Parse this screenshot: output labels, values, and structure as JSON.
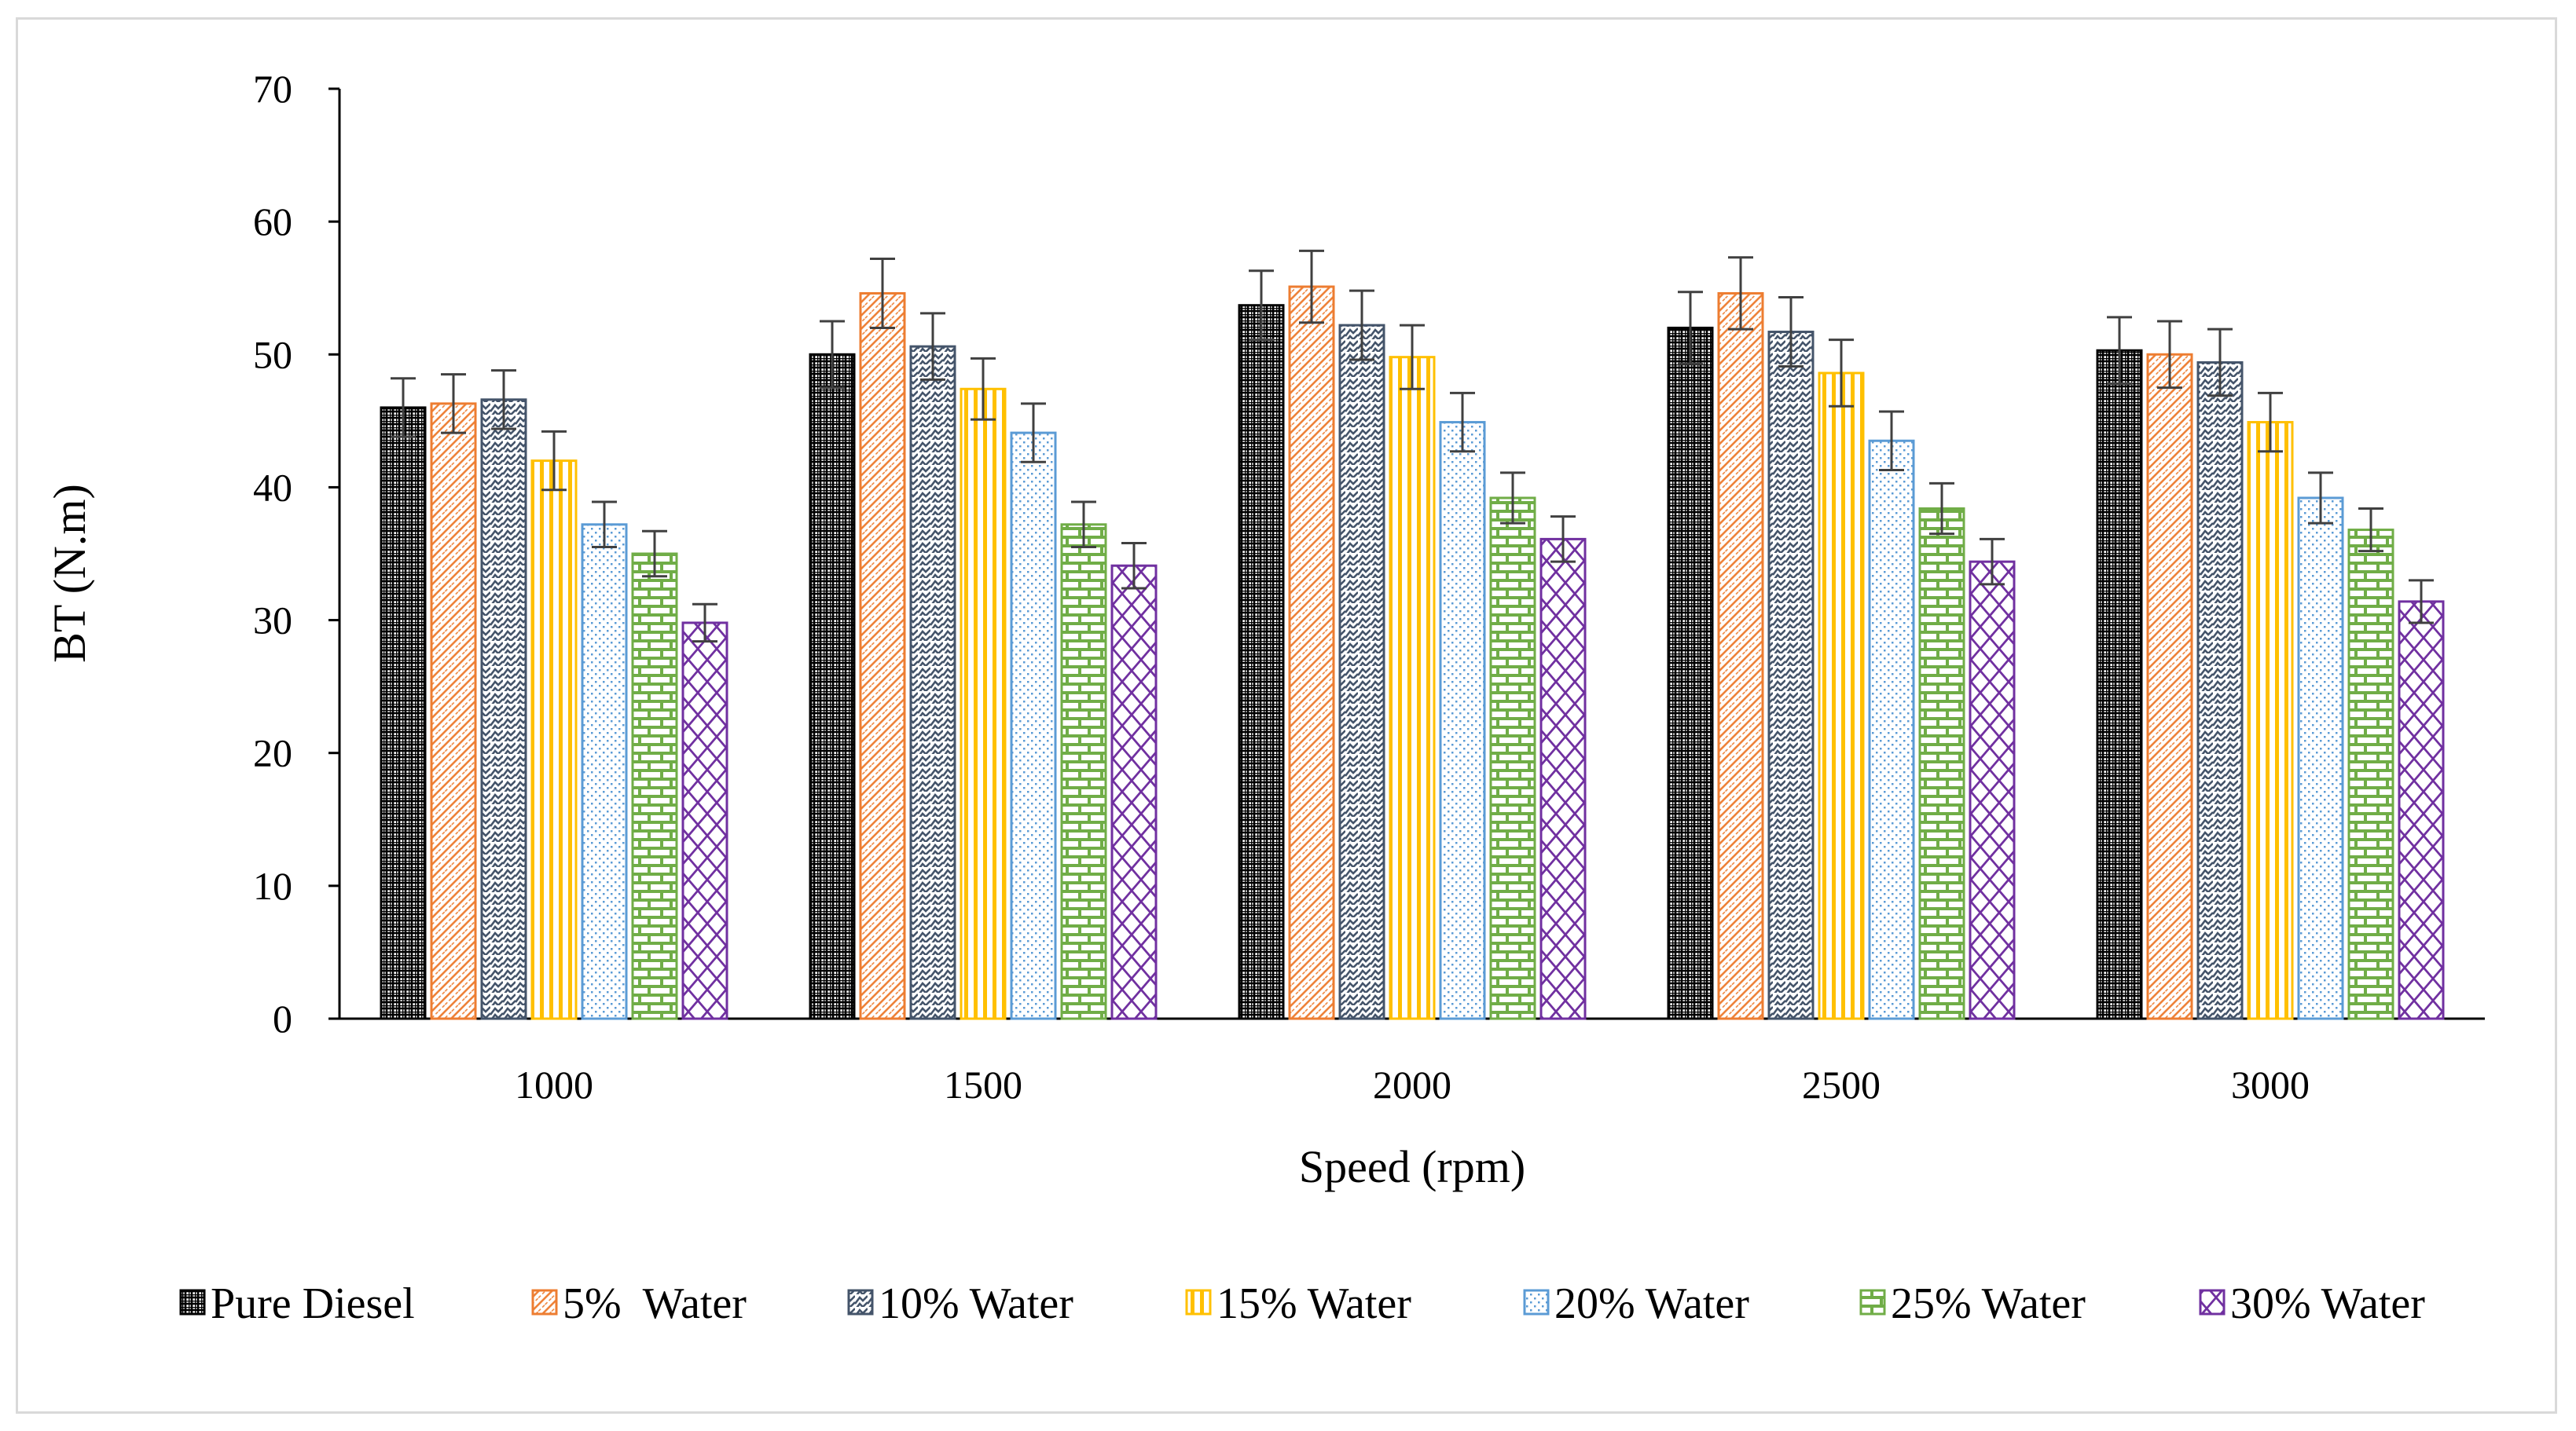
{
  "chart_data": {
    "type": "bar",
    "title": "",
    "xlabel": "Speed (rpm)",
    "ylabel": "BT (N.m)",
    "ylim": [
      0,
      70
    ],
    "yticks": [
      0,
      10,
      20,
      30,
      40,
      50,
      60,
      70
    ],
    "grid": false,
    "legend_position": "bottom",
    "error_bars": true,
    "categories": [
      "1000",
      "1500",
      "2000",
      "2500",
      "3000"
    ],
    "series": [
      {
        "name": "Pure Diesel",
        "color": "#000000",
        "pattern": "grid",
        "values": [
          46.0,
          50.0,
          53.7,
          52.0,
          50.3
        ],
        "errors": [
          2.2,
          2.5,
          2.6,
          2.7,
          2.5
        ]
      },
      {
        "name": "5%  Water",
        "color": "#ED7D31",
        "pattern": "diagonal",
        "values": [
          46.3,
          54.6,
          55.1,
          54.6,
          50.0
        ],
        "errors": [
          2.2,
          2.6,
          2.7,
          2.7,
          2.5
        ]
      },
      {
        "name": "10% Water",
        "color": "#44546A",
        "pattern": "wave",
        "values": [
          46.6,
          50.6,
          52.2,
          51.7,
          49.4
        ],
        "errors": [
          2.2,
          2.5,
          2.6,
          2.6,
          2.5
        ]
      },
      {
        "name": "15% Water",
        "color": "#FFC000",
        "pattern": "vertical",
        "values": [
          42.0,
          47.4,
          49.8,
          48.6,
          44.9
        ],
        "errors": [
          2.2,
          2.3,
          2.4,
          2.5,
          2.2
        ]
      },
      {
        "name": "20% Water",
        "color": "#5B9BD5",
        "pattern": "dots",
        "values": [
          37.2,
          44.1,
          44.9,
          43.5,
          39.2
        ],
        "errors": [
          1.7,
          2.2,
          2.2,
          2.2,
          1.9
        ]
      },
      {
        "name": "25% Water",
        "color": "#70AD47",
        "pattern": "brick",
        "values": [
          35.0,
          37.2,
          39.2,
          38.4,
          36.8
        ],
        "errors": [
          1.7,
          1.7,
          1.9,
          1.9,
          1.6
        ]
      },
      {
        "name": "30% Water",
        "color": "#7030A0",
        "pattern": "diamond",
        "values": [
          29.8,
          34.1,
          36.1,
          34.4,
          31.4
        ],
        "errors": [
          1.4,
          1.7,
          1.7,
          1.7,
          1.6
        ]
      }
    ]
  }
}
